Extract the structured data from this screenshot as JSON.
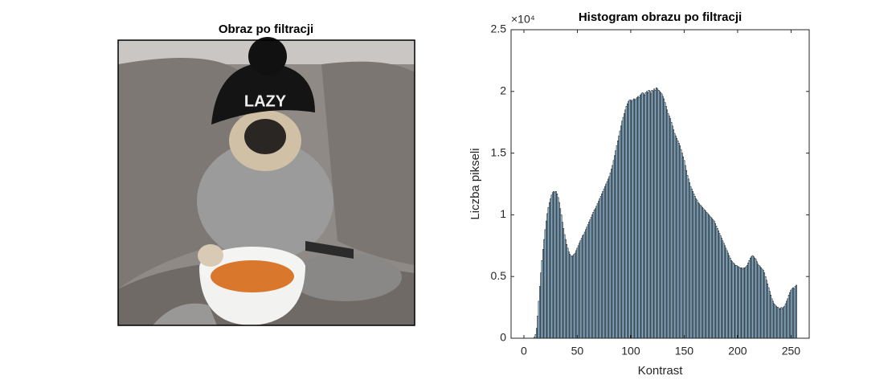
{
  "chart_data": [
    {
      "type": "image",
      "title": "Obraz po filtracji"
    },
    {
      "type": "bar",
      "title": "Histogram obrazu po filtracji",
      "xlabel": "Kontrast",
      "ylabel": "Liczba pikseli",
      "y_exponent": "×10⁴",
      "color": "#a9d4f2",
      "edgecolor": "#000000",
      "xlim": [
        -12,
        267
      ],
      "ylim": [
        0,
        25000
      ],
      "xticks": [
        0,
        50,
        100,
        150,
        200,
        250
      ],
      "yticks": [
        0,
        {
          "value": 5000,
          "label": "0.5"
        },
        {
          "value": 10000,
          "label": "1"
        },
        {
          "value": 15000,
          "label": "1.5"
        },
        {
          "value": 20000,
          "label": "2"
        },
        {
          "value": 25000,
          "label": "2.5"
        }
      ],
      "x": [
        0,
        1,
        2,
        3,
        4,
        5,
        6,
        7,
        8,
        9,
        10,
        11,
        12,
        13,
        14,
        15,
        16,
        17,
        18,
        19,
        20,
        21,
        22,
        23,
        24,
        25,
        26,
        27,
        28,
        29,
        30,
        31,
        32,
        33,
        34,
        35,
        36,
        37,
        38,
        39,
        40,
        41,
        42,
        43,
        44,
        45,
        46,
        47,
        48,
        49,
        50,
        51,
        52,
        53,
        54,
        55,
        56,
        57,
        58,
        59,
        60,
        61,
        62,
        63,
        64,
        65,
        66,
        67,
        68,
        69,
        70,
        71,
        72,
        73,
        74,
        75,
        76,
        77,
        78,
        79,
        80,
        81,
        82,
        83,
        84,
        85,
        86,
        87,
        88,
        89,
        90,
        91,
        92,
        93,
        94,
        95,
        96,
        97,
        98,
        99,
        100,
        101,
        102,
        103,
        104,
        105,
        106,
        107,
        108,
        109,
        110,
        111,
        112,
        113,
        114,
        115,
        116,
        117,
        118,
        119,
        120,
        121,
        122,
        123,
        124,
        125,
        126,
        127,
        128,
        129,
        130,
        131,
        132,
        133,
        134,
        135,
        136,
        137,
        138,
        139,
        140,
        141,
        142,
        143,
        144,
        145,
        146,
        147,
        148,
        149,
        150,
        151,
        152,
        153,
        154,
        155,
        156,
        157,
        158,
        159,
        160,
        161,
        162,
        163,
        164,
        165,
        166,
        167,
        168,
        169,
        170,
        171,
        172,
        173,
        174,
        175,
        176,
        177,
        178,
        179,
        180,
        181,
        182,
        183,
        184,
        185,
        186,
        187,
        188,
        189,
        190,
        191,
        192,
        193,
        194,
        195,
        196,
        197,
        198,
        199,
        200,
        201,
        202,
        203,
        204,
        205,
        206,
        207,
        208,
        209,
        210,
        211,
        212,
        213,
        214,
        215,
        216,
        217,
        218,
        219,
        220,
        221,
        222,
        223,
        224,
        225,
        226,
        227,
        228,
        229,
        230,
        231,
        232,
        233,
        234,
        235,
        236,
        237,
        238,
        239,
        240,
        241,
        242,
        243,
        244,
        245,
        246,
        247,
        248,
        249,
        250,
        251,
        252,
        253,
        254,
        255
      ],
      "values": [
        0,
        0,
        0,
        0,
        0,
        0,
        0,
        0,
        0,
        0,
        100,
        300,
        800,
        1800,
        3000,
        4200,
        5300,
        6300,
        7200,
        8000,
        8800,
        9500,
        10100,
        10600,
        11000,
        11300,
        11600,
        11800,
        11900,
        11800,
        11900,
        11700,
        11400,
        11000,
        10500,
        10000,
        9400,
        8900,
        8400,
        8000,
        7600,
        7300,
        7000,
        6800,
        6700,
        6600,
        6700,
        6800,
        6900,
        7100,
        7300,
        7500,
        7700,
        7900,
        8100,
        8300,
        8400,
        8600,
        8800,
        9000,
        9200,
        9400,
        9600,
        9800,
        10000,
        10200,
        10400,
        10500,
        10700,
        10900,
        11100,
        11300,
        11500,
        11700,
        11900,
        12100,
        12300,
        12500,
        12700,
        12900,
        13100,
        13400,
        13700,
        14000,
        14400,
        14800,
        15200,
        15600,
        16000,
        16400,
        16800,
        17200,
        17600,
        17900,
        18200,
        18500,
        18800,
        19000,
        19200,
        19300,
        19300,
        19200,
        19300,
        19400,
        19300,
        19400,
        19500,
        19600,
        19500,
        19700,
        19800,
        19900,
        19800,
        19700,
        19900,
        20000,
        19900,
        20100,
        20000,
        19800,
        20100,
        20000,
        20200,
        20100,
        20300,
        20200,
        20100,
        20000,
        19900,
        19800,
        19600,
        19400,
        19100,
        18800,
        18500,
        18200,
        18000,
        17800,
        17500,
        17200,
        16900,
        16600,
        16400,
        16200,
        16000,
        15800,
        15600,
        15300,
        15000,
        14700,
        14400,
        14000,
        13600,
        13200,
        12900,
        12600,
        12300,
        12100,
        11900,
        11700,
        11500,
        11300,
        11200,
        11000,
        10900,
        10800,
        10700,
        10600,
        10500,
        10400,
        10300,
        10200,
        10100,
        10000,
        9900,
        9800,
        9700,
        9600,
        9500,
        9300,
        9100,
        8900,
        8700,
        8500,
        8300,
        8100,
        7900,
        7700,
        7500,
        7300,
        7100,
        6900,
        6700,
        6500,
        6300,
        6200,
        6100,
        6000,
        5900,
        5900,
        5800,
        5800,
        5700,
        5700,
        5700,
        5600,
        5700,
        5700,
        5800,
        5900,
        6100,
        6300,
        6500,
        6600,
        6700,
        6600,
        6500,
        6400,
        6200,
        6000,
        5900,
        5800,
        5700,
        5600,
        5500,
        5300,
        5000,
        4700,
        4400,
        4100,
        3800,
        3500,
        3200,
        3000,
        2800,
        2700,
        2600,
        2500,
        2500,
        2400,
        2400,
        2500,
        2400,
        2500,
        2600,
        2800,
        3000,
        3200,
        3500,
        3700,
        3900,
        4000,
        4100,
        4000,
        4200,
        4300
      ]
    }
  ]
}
